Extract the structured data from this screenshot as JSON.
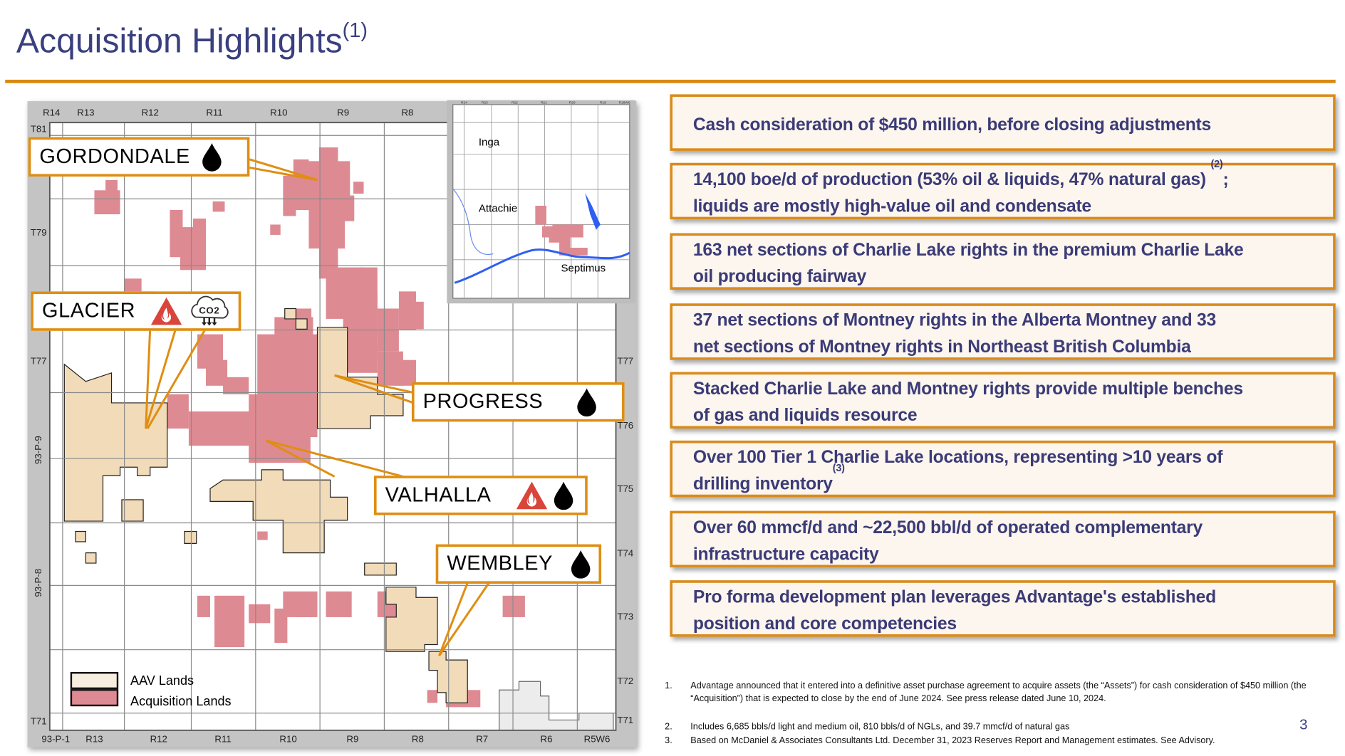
{
  "title": {
    "text": "Acquisition Highlights",
    "sup": "(1)"
  },
  "colors": {
    "title": "#3a3f7e",
    "accent_orange": "#d98a12",
    "acquisition_lands": "#de8a92",
    "aav_lands": "#f2dbb8",
    "box_fill": "#fcf6ee",
    "box_text": "#3b3b78",
    "water": "#2f5ff0",
    "flame_red": "#d9453a"
  },
  "map": {
    "top_ranges": [
      "R14",
      "R13",
      "R12",
      "R11",
      "R10",
      "R9",
      "R8"
    ],
    "bottom_ranges": [
      "93-P-1",
      "R13",
      "R12",
      "R11",
      "R10",
      "R9",
      "R8",
      "R7",
      "R6",
      "R5W6"
    ],
    "left_townships": [
      "T81",
      "T79",
      "T77",
      "93-P-9",
      "93-P-8",
      "T71"
    ],
    "right_townships": [
      "T77",
      "T76",
      "T75",
      "T74",
      "T73",
      "T72",
      "T71"
    ],
    "callouts": [
      {
        "name": "GORDONDALE",
        "icons": [
          "oil-drop-icon"
        ]
      },
      {
        "name": "GLACIER",
        "icons": [
          "gas-flame-icon",
          "co2-cloud-icon"
        ]
      },
      {
        "name": "PROGRESS",
        "icons": [
          "oil-drop-icon"
        ]
      },
      {
        "name": "VALHALLA",
        "icons": [
          "gas-flame-icon",
          "oil-drop-icon"
        ]
      },
      {
        "name": "WEMBLEY",
        "icons": [
          "oil-drop-icon"
        ]
      }
    ],
    "co2_label": "CO2",
    "legend": [
      {
        "label": "AAV Lands",
        "color": "#f7eee0"
      },
      {
        "label": "Acquisition Lands",
        "color": "#de8a92"
      }
    ],
    "inset": {
      "places": [
        "Inga",
        "Attachie",
        "Septimus"
      ],
      "ranges": [
        "R24",
        "R23",
        "R22",
        "R21",
        "R20",
        "R19",
        "R18W6"
      ]
    }
  },
  "highlights": [
    {
      "text": "Cash consideration of $450 million, before closing adjustments"
    },
    {
      "text": "14,100 boe/d of production (53% oil & liquids, 47% natural gas) ",
      "sup": "(2)",
      "after": ";",
      "line2": "liquids are mostly high-value oil and condensate"
    },
    {
      "text": "163 net sections of Charlie Lake rights in the premium Charlie Lake",
      "line2": "oil producing fairway"
    },
    {
      "text": "37 net sections of Montney rights in the Alberta Montney and 33",
      "line2": "net sections of Montney rights in Northeast British Columbia"
    },
    {
      "text": "Stacked Charlie Lake and Montney rights provide multiple benches",
      "line2": "of gas and liquids resource"
    },
    {
      "text": "Over 100 Tier 1 Charlie Lake locations, representing >10 years of",
      "line2": "drilling inventory",
      "sup2": "(3)"
    },
    {
      "text": "Over 60 mmcf/d and ~22,500 bbl/d of operated complementary",
      "line2": "infrastructure capacity"
    },
    {
      "text": "Pro forma development plan leverages Advantage's established",
      "line2": "position and core competencies"
    }
  ],
  "footnotes": [
    {
      "num": "1.",
      "text": "Advantage announced that it entered into a definitive asset purchase agreement to acquire assets (the “Assets”) for cash consideration of $450 million (the “Acquisition”) that is expected to close by the end of June 2024. See press release dated June 10, 2024."
    },
    {
      "num": "2.",
      "text": "Includes 6,685 bbls/d light and medium oil, 810 bbls/d of NGLs, and 39.7 mmcf/d of natural gas"
    },
    {
      "num": "3.",
      "text": "Based on McDaniel & Associates Consultants Ltd. December 31, 2023 Reserves Report and Management estimates.   See Advisory."
    }
  ],
  "page_number": "3"
}
